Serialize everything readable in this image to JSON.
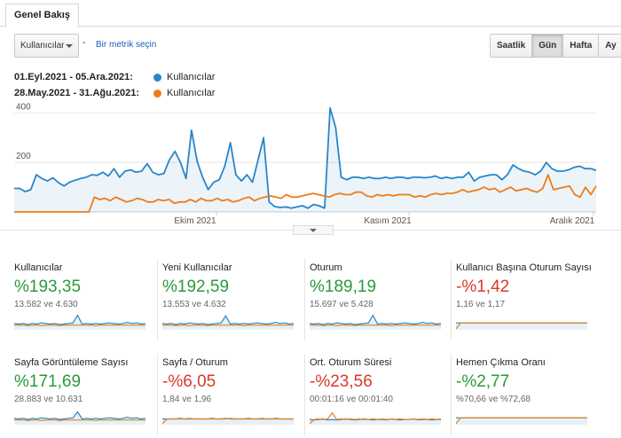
{
  "tab": {
    "label": "Genel Bakış"
  },
  "controls": {
    "metric_select_value": "Kullanıcılar",
    "separator": "-",
    "add_metric_link": "Bir metrik seçin",
    "granularity": [
      {
        "label": "Saatlik",
        "active": false
      },
      {
        "label": "Gün",
        "active": true
      },
      {
        "label": "Hafta",
        "active": false
      },
      {
        "label": "Ay",
        "active": false
      }
    ]
  },
  "legend": [
    {
      "range": "01.Eyl.2021 - 05.Ara.2021:",
      "metric": "Kullanıcılar",
      "color": "#2a86c9"
    },
    {
      "range": "28.May.2021 - 31.Ağu.2021:",
      "metric": "Kullanıcılar",
      "color": "#ee7d17"
    }
  ],
  "chart_data": {
    "type": "line",
    "y_ticks": [
      "400",
      "200"
    ],
    "ylim": [
      0,
      430
    ],
    "x_ticks": [
      "Ekim 2021",
      "Kasım 2021",
      "Aralık 2021"
    ],
    "grid": true,
    "series": [
      {
        "name": "01.Eyl.2021 - 05.Ara.2021: Kullanıcılar",
        "color": "#2a86c9",
        "area": true,
        "values": [
          95,
          95,
          82,
          90,
          150,
          135,
          125,
          138,
          118,
          105,
          120,
          128,
          135,
          140,
          150,
          148,
          160,
          145,
          175,
          140,
          165,
          170,
          160,
          165,
          195,
          160,
          150,
          155,
          210,
          245,
          200,
          135,
          330,
          205,
          140,
          90,
          120,
          130,
          185,
          280,
          150,
          125,
          150,
          120,
          210,
          300,
          40,
          22,
          18,
          20,
          15,
          20,
          25,
          15,
          30,
          25,
          15,
          420,
          340,
          140,
          130,
          140,
          140,
          135,
          140,
          135,
          135,
          140,
          135,
          140,
          140,
          135,
          140,
          140,
          138,
          140,
          145,
          135,
          140,
          135,
          140,
          140,
          160,
          125,
          140,
          145,
          150,
          150,
          130,
          150,
          190,
          175,
          165,
          160,
          150,
          165,
          200,
          175,
          165,
          165,
          170,
          180,
          185,
          175,
          175,
          168
        ]
      },
      {
        "name": "28.May.2021 - 31.Ağu.2021: Kullanıcılar",
        "color": "#ee7d17",
        "area": false,
        "values": [
          0,
          0,
          0,
          0,
          0,
          0,
          0,
          0,
          0,
          0,
          0,
          0,
          0,
          0,
          0,
          60,
          50,
          55,
          45,
          60,
          50,
          40,
          45,
          55,
          50,
          40,
          40,
          50,
          45,
          50,
          35,
          40,
          40,
          50,
          40,
          55,
          45,
          45,
          55,
          45,
          50,
          40,
          45,
          55,
          60,
          45,
          55,
          60,
          65,
          60,
          55,
          70,
          60,
          60,
          65,
          70,
          75,
          70,
          65,
          60,
          70,
          75,
          70,
          70,
          80,
          80,
          65,
          60,
          70,
          65,
          70,
          65,
          70,
          70,
          70,
          60,
          65,
          60,
          70,
          75,
          70,
          75,
          75,
          80,
          90,
          80,
          85,
          90,
          100,
          90,
          95,
          80,
          90,
          100,
          85,
          90,
          95,
          85,
          80,
          95,
          150,
          90,
          95,
          100,
          105,
          70,
          60,
          100,
          70,
          105
        ]
      }
    ]
  },
  "cards": [
    {
      "name": "Kullanıcılar",
      "value": "%193,35",
      "sign": "pos",
      "sub": "13.582 ve 4.630",
      "spark": {
        "blue": [
          10,
          9,
          10,
          8,
          10,
          9,
          11,
          10,
          9,
          10,
          8,
          9,
          10,
          11,
          25,
          9,
          10,
          9,
          10,
          9,
          10,
          11,
          10,
          9,
          10,
          12,
          10,
          11,
          9,
          10
        ],
        "orange": [
          7,
          7,
          7,
          6,
          7,
          7,
          6,
          7,
          7,
          7,
          6,
          7,
          7,
          7,
          7,
          7,
          7,
          7,
          6,
          7,
          7,
          7,
          7,
          7,
          7,
          7,
          7,
          7,
          7,
          7
        ]
      }
    },
    {
      "name": "Yeni Kullanıcılar",
      "value": "%192,59",
      "sign": "pos",
      "sub": "13.553 ve 4.632",
      "spark": {
        "blue": [
          10,
          9,
          10,
          8,
          10,
          9,
          11,
          10,
          9,
          10,
          8,
          9,
          10,
          11,
          24,
          9,
          10,
          9,
          10,
          9,
          10,
          11,
          10,
          9,
          10,
          12,
          10,
          11,
          9,
          10
        ],
        "orange": [
          7,
          7,
          7,
          6,
          7,
          7,
          6,
          7,
          7,
          7,
          6,
          7,
          7,
          7,
          7,
          7,
          7,
          7,
          6,
          7,
          7,
          7,
          7,
          7,
          7,
          7,
          7,
          7,
          7,
          7
        ]
      }
    },
    {
      "name": "Oturum",
      "value": "%189,19",
      "sign": "pos",
      "sub": "15.697 ve 5.428",
      "spark": {
        "blue": [
          10,
          9,
          10,
          8,
          10,
          9,
          11,
          10,
          9,
          10,
          8,
          9,
          10,
          11,
          25,
          9,
          10,
          9,
          10,
          9,
          10,
          11,
          10,
          9,
          10,
          12,
          10,
          11,
          9,
          10
        ],
        "orange": [
          7,
          7,
          7,
          6,
          7,
          7,
          6,
          7,
          7,
          7,
          6,
          7,
          7,
          7,
          7,
          7,
          7,
          7,
          6,
          7,
          7,
          7,
          7,
          7,
          7,
          7,
          7,
          7,
          7,
          7
        ]
      }
    },
    {
      "name": "Kullanıcı Başına Oturum Sayısı",
      "value": "-%1,42",
      "sign": "neg",
      "sub": "1,16 ve 1,17",
      "spark": {
        "blue": [
          11,
          11,
          11,
          11,
          11,
          11,
          11,
          11,
          11,
          11,
          11,
          11,
          11,
          11,
          11,
          11,
          11,
          11,
          11,
          11,
          11,
          11,
          11,
          11,
          11,
          11,
          11,
          11,
          11,
          11
        ],
        "orange": [
          0,
          11,
          11,
          11,
          11,
          11,
          11,
          11,
          11,
          11,
          11,
          11,
          11,
          11,
          11,
          11,
          11,
          11,
          11,
          11,
          11,
          11,
          11,
          11,
          11,
          11,
          11,
          11,
          11,
          11
        ]
      }
    },
    {
      "name": "Sayfa Görüntüleme Sayısı",
      "value": "%171,69",
      "sign": "pos",
      "sub": "28.883 ve 10.631",
      "spark": {
        "blue": [
          10,
          9,
          10,
          8,
          10,
          9,
          11,
          10,
          9,
          10,
          8,
          9,
          10,
          11,
          22,
          9,
          10,
          9,
          10,
          9,
          10,
          11,
          10,
          9,
          10,
          12,
          10,
          11,
          9,
          10
        ],
        "orange": [
          7,
          7,
          7,
          6,
          7,
          7,
          6,
          7,
          7,
          7,
          6,
          7,
          7,
          7,
          7,
          7,
          7,
          7,
          6,
          7,
          7,
          7,
          7,
          7,
          7,
          7,
          7,
          7,
          7,
          7
        ]
      }
    },
    {
      "name": "Sayfa / Oturum",
      "value": "-%6,05",
      "sign": "neg",
      "sub": "1,84 ve 1,96",
      "spark": {
        "blue": [
          9,
          9,
          9,
          9,
          10,
          9,
          9,
          9,
          9,
          9,
          9,
          10,
          9,
          9,
          10,
          9,
          9,
          9,
          9,
          10,
          9,
          9,
          9,
          9,
          9,
          10,
          9,
          9,
          9,
          9
        ],
        "orange": [
          0,
          9,
          9,
          9,
          9,
          9,
          10,
          9,
          9,
          9,
          9,
          9,
          9,
          9,
          9,
          10,
          9,
          9,
          9,
          9,
          9,
          9,
          10,
          9,
          9,
          9,
          9,
          9,
          9,
          9
        ]
      }
    },
    {
      "name": "Ort. Oturum Süresi",
      "value": "-%23,56",
      "sign": "neg",
      "sub": "00:01:16 ve 00:01:40",
      "spark": {
        "blue": [
          8,
          7,
          8,
          9,
          7,
          8,
          7,
          8,
          9,
          8,
          7,
          8,
          9,
          8,
          7,
          8,
          8,
          7,
          9,
          8,
          7,
          8,
          8,
          9,
          7,
          8,
          8,
          7,
          8,
          8
        ],
        "orange": [
          0,
          8,
          9,
          8,
          9,
          20,
          8,
          9,
          8,
          9,
          8,
          9,
          8,
          8,
          9,
          8,
          9,
          8,
          9,
          8,
          9,
          8,
          8,
          9,
          8,
          9,
          8,
          9,
          8,
          9
        ]
      }
    },
    {
      "name": "Hemen Çıkma Oranı",
      "value": "-%2,77",
      "sign": "pos",
      "sub": "%70,66 ve %72,68",
      "spark": {
        "blue": [
          11,
          11,
          11,
          11,
          11,
          11,
          11,
          11,
          11,
          11,
          11,
          11,
          11,
          11,
          11,
          11,
          11,
          11,
          11,
          11,
          11,
          11,
          11,
          11,
          11,
          11,
          11,
          11,
          11,
          11
        ],
        "orange": [
          0,
          11,
          11,
          11,
          11,
          11,
          11,
          11,
          11,
          11,
          11,
          11,
          11,
          11,
          11,
          11,
          11,
          11,
          11,
          11,
          11,
          11,
          11,
          11,
          11,
          11,
          11,
          11,
          11,
          11
        ]
      }
    }
  ]
}
